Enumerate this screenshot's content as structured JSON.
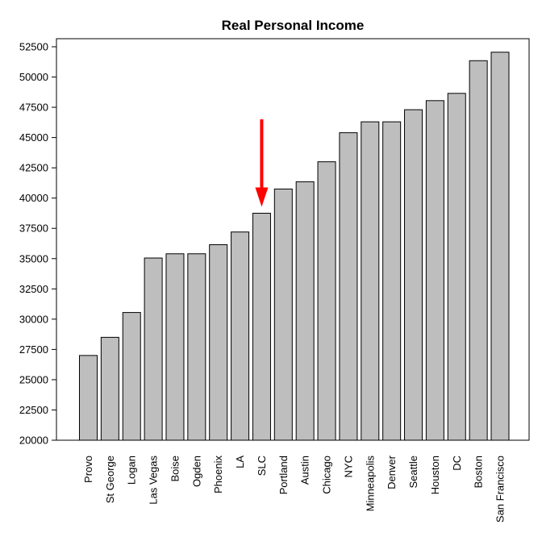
{
  "chart_data": {
    "type": "bar",
    "title": "Real Personal Income",
    "xlabel": "",
    "ylabel": "",
    "ylim": [
      20000,
      52500
    ],
    "yticks": [
      "20000",
      "22500",
      "25000",
      "27500",
      "30000",
      "32500",
      "35000",
      "37500",
      "40000",
      "42500",
      "45000",
      "47500",
      "50000",
      "52500"
    ],
    "grid": false,
    "bar_color": "#bebebe",
    "categories": [
      "Provo",
      "St George",
      "Logan",
      "Las Vegas",
      "Boise",
      "Ogden",
      "Phoenix",
      "LA",
      "SLC",
      "Portland",
      "Austin",
      "Chicago",
      "NYC",
      "Minneapolis",
      "Denver",
      "Seattle",
      "Houston",
      "DC",
      "Boston",
      "San Francisco"
    ],
    "values": [
      27000,
      28500,
      30550,
      35050,
      35400,
      35400,
      36150,
      37200,
      38750,
      40750,
      41350,
      43000,
      45400,
      46300,
      46300,
      47300,
      48050,
      48650,
      51350,
      52050
    ],
    "annotation": {
      "type": "arrow",
      "target": "SLC",
      "color": "#ff0000"
    }
  }
}
